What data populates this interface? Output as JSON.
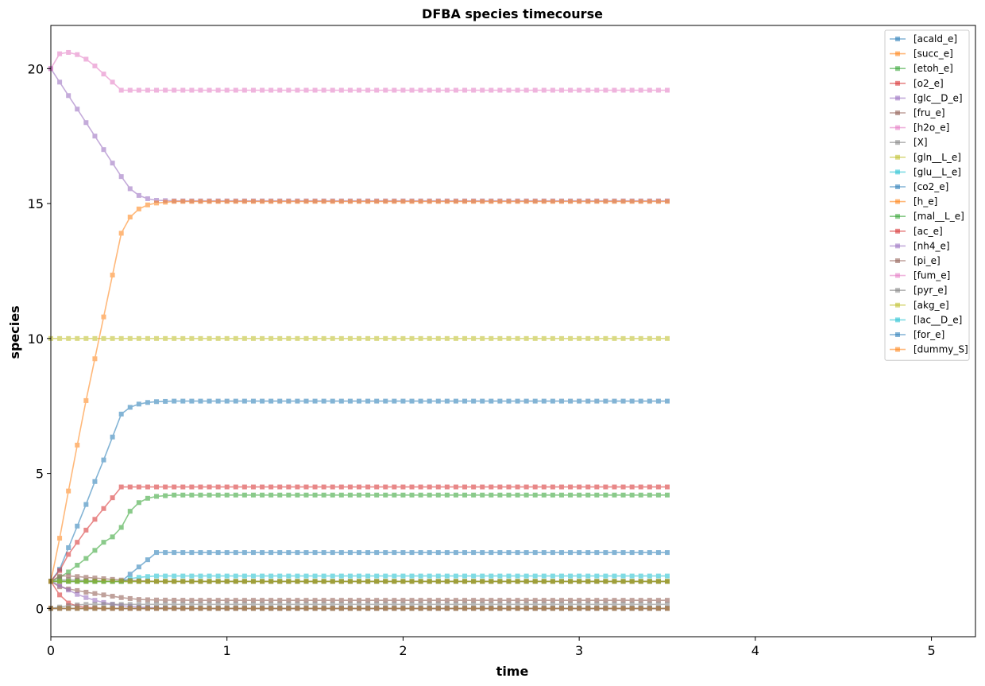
{
  "chart_data": {
    "type": "line",
    "title": "DFBA species timecourse",
    "xlabel": "time",
    "ylabel": "species",
    "xlim": [
      0,
      5.25
    ],
    "ylim": [
      -1.05,
      21.6
    ],
    "xticks": [
      0,
      1,
      2,
      3,
      4,
      5
    ],
    "yticks": [
      0,
      5,
      10,
      15,
      20
    ],
    "grid": false,
    "legend_position": "top-right",
    "marker": "square",
    "t_end": 3.5,
    "t_step": 0.05,
    "series": [
      {
        "name": "[acald_e]",
        "color": "#1f77b4",
        "points": [
          [
            0,
            1
          ],
          [
            0.4,
            1
          ],
          [
            0.6,
            2.07
          ],
          [
            3.5,
            2.07
          ]
        ]
      },
      {
        "name": "[succ_e]",
        "color": "#ff7f0e",
        "points": [
          [
            0,
            0
          ],
          [
            3.5,
            0
          ]
        ]
      },
      {
        "name": "[etoh_e]",
        "color": "#2ca02c",
        "points": [
          [
            0,
            1
          ],
          [
            0.05,
            1.15
          ],
          [
            0.1,
            1.35
          ],
          [
            0.15,
            1.6
          ],
          [
            0.2,
            1.85
          ],
          [
            0.25,
            2.15
          ],
          [
            0.3,
            2.45
          ],
          [
            0.35,
            2.65
          ],
          [
            0.4,
            3.0
          ],
          [
            0.45,
            3.6
          ],
          [
            0.5,
            3.92
          ],
          [
            0.55,
            4.08
          ],
          [
            0.6,
            4.15
          ],
          [
            0.7,
            4.2
          ],
          [
            3.5,
            4.2
          ]
        ]
      },
      {
        "name": "[o2_e]",
        "color": "#d62728",
        "points": [
          [
            0,
            1
          ],
          [
            0.05,
            0.5
          ],
          [
            0.1,
            0.2
          ],
          [
            0.15,
            0.08
          ],
          [
            0.2,
            0.04
          ],
          [
            0.3,
            0
          ],
          [
            3.5,
            0
          ]
        ]
      },
      {
        "name": "[glc__D_e]",
        "color": "#9467bd",
        "points": [
          [
            0,
            20
          ],
          [
            0.4,
            16
          ],
          [
            0.45,
            15.55
          ],
          [
            0.5,
            15.3
          ],
          [
            0.55,
            15.18
          ],
          [
            0.6,
            15.12
          ],
          [
            0.7,
            15.1
          ],
          [
            3.5,
            15.1
          ]
        ]
      },
      {
        "name": "[fru_e]",
        "color": "#8c564b",
        "points": [
          [
            0,
            1
          ],
          [
            0.05,
            0.8
          ],
          [
            0.1,
            0.72
          ],
          [
            0.2,
            0.6
          ],
          [
            0.3,
            0.5
          ],
          [
            0.4,
            0.4
          ],
          [
            0.5,
            0.33
          ],
          [
            0.6,
            0.31
          ],
          [
            0.8,
            0.3
          ],
          [
            3.5,
            0.3
          ]
        ]
      },
      {
        "name": "[h2o_e]",
        "color": "#e377c2",
        "points": [
          [
            0,
            20
          ],
          [
            0.05,
            20.55
          ],
          [
            0.1,
            20.6
          ],
          [
            0.15,
            20.52
          ],
          [
            0.2,
            20.35
          ],
          [
            0.25,
            20.1
          ],
          [
            0.3,
            19.8
          ],
          [
            0.35,
            19.5
          ],
          [
            0.4,
            19.2
          ],
          [
            3.5,
            19.2
          ]
        ]
      },
      {
        "name": "[X]",
        "color": "#7f7f7f",
        "points": [
          [
            0,
            1
          ],
          [
            0.05,
            1.05
          ],
          [
            0.1,
            1.06
          ],
          [
            0.15,
            1.05
          ],
          [
            0.2,
            1.03
          ],
          [
            0.3,
            1.01
          ],
          [
            0.4,
            1.0
          ],
          [
            3.5,
            1.0
          ]
        ]
      },
      {
        "name": "[gln__L_e]",
        "color": "#bcbd22",
        "points": [
          [
            0,
            10
          ],
          [
            3.5,
            10
          ]
        ]
      },
      {
        "name": "[glu__L_e]",
        "color": "#17becf",
        "points": [
          [
            0,
            1
          ],
          [
            0.4,
            1.0
          ],
          [
            0.45,
            1.1
          ],
          [
            0.5,
            1.15
          ],
          [
            0.55,
            1.18
          ],
          [
            0.6,
            1.2
          ],
          [
            3.5,
            1.2
          ]
        ]
      },
      {
        "name": "[co2_e]",
        "color": "#1f77b4",
        "points": [
          [
            0,
            1
          ],
          [
            0.05,
            1.45
          ],
          [
            0.1,
            2.25
          ],
          [
            0.15,
            3.05
          ],
          [
            0.2,
            3.85
          ],
          [
            0.25,
            4.7
          ],
          [
            0.3,
            5.5
          ],
          [
            0.35,
            6.35
          ],
          [
            0.4,
            7.2
          ],
          [
            0.45,
            7.45
          ],
          [
            0.5,
            7.57
          ],
          [
            0.55,
            7.63
          ],
          [
            0.6,
            7.66
          ],
          [
            0.7,
            7.68
          ],
          [
            3.5,
            7.68
          ]
        ]
      },
      {
        "name": "[h_e]",
        "color": "#ff7f0e",
        "points": [
          [
            0,
            1
          ],
          [
            0.05,
            2.6
          ],
          [
            0.1,
            4.35
          ],
          [
            0.15,
            6.05
          ],
          [
            0.2,
            7.7
          ],
          [
            0.25,
            9.25
          ],
          [
            0.3,
            10.8
          ],
          [
            0.35,
            12.35
          ],
          [
            0.4,
            13.9
          ],
          [
            0.45,
            14.5
          ],
          [
            0.5,
            14.8
          ],
          [
            0.55,
            14.95
          ],
          [
            0.6,
            15.02
          ],
          [
            0.7,
            15.08
          ],
          [
            3.5,
            15.08
          ]
        ]
      },
      {
        "name": "[mal__L_e]",
        "color": "#2ca02c",
        "points": [
          [
            0,
            1
          ],
          [
            3.5,
            1
          ]
        ]
      },
      {
        "name": "[ac_e]",
        "color": "#d62728",
        "points": [
          [
            0,
            1
          ],
          [
            0.05,
            1.4
          ],
          [
            0.1,
            2.0
          ],
          [
            0.15,
            2.45
          ],
          [
            0.2,
            2.9
          ],
          [
            0.25,
            3.3
          ],
          [
            0.3,
            3.7
          ],
          [
            0.35,
            4.1
          ],
          [
            0.4,
            4.5
          ],
          [
            3.5,
            4.5
          ]
        ]
      },
      {
        "name": "[nh4_e]",
        "color": "#9467bd",
        "points": [
          [
            0,
            1
          ],
          [
            0.05,
            0.85
          ],
          [
            0.1,
            0.68
          ],
          [
            0.15,
            0.52
          ],
          [
            0.2,
            0.4
          ],
          [
            0.25,
            0.3
          ],
          [
            0.3,
            0.22
          ],
          [
            0.35,
            0.15
          ],
          [
            0.4,
            0.1
          ],
          [
            0.5,
            0.05
          ],
          [
            0.6,
            0.02
          ],
          [
            0.8,
            0
          ],
          [
            3.5,
            0
          ]
        ]
      },
      {
        "name": "[pi_e]",
        "color": "#8c564b",
        "points": [
          [
            0,
            1
          ],
          [
            0.05,
            1.2
          ],
          [
            0.1,
            1.2
          ],
          [
            0.15,
            1.18
          ],
          [
            0.2,
            1.15
          ],
          [
            0.3,
            1.1
          ],
          [
            0.4,
            1.05
          ],
          [
            0.5,
            1.02
          ],
          [
            0.6,
            1.0
          ],
          [
            3.5,
            1.0
          ]
        ]
      },
      {
        "name": "[fum_e]",
        "color": "#e377c2",
        "points": [
          [
            0,
            0
          ],
          [
            3.5,
            0
          ]
        ]
      },
      {
        "name": "[pyr_e]",
        "color": "#7f7f7f",
        "points": [
          [
            0,
            0
          ],
          [
            0.05,
            0.05
          ],
          [
            0.1,
            0.1
          ],
          [
            0.15,
            0.13
          ],
          [
            0.2,
            0.15
          ],
          [
            0.4,
            0.15
          ],
          [
            3.5,
            0.15
          ]
        ]
      },
      {
        "name": "[akg_e]",
        "color": "#bcbd22",
        "points": [
          [
            0,
            1
          ],
          [
            3.5,
            1
          ]
        ]
      },
      {
        "name": "[lac__D_e]",
        "color": "#17becf",
        "points": [
          [
            0,
            0
          ],
          [
            3.5,
            0
          ]
        ]
      },
      {
        "name": "[for_e]",
        "color": "#1f77b4",
        "points": [
          [
            0,
            0
          ],
          [
            3.5,
            0
          ]
        ]
      },
      {
        "name": "[dummy_S]",
        "color": "#ff7f0e",
        "points": [
          [
            0,
            0
          ],
          [
            3.5,
            0
          ]
        ]
      }
    ]
  }
}
